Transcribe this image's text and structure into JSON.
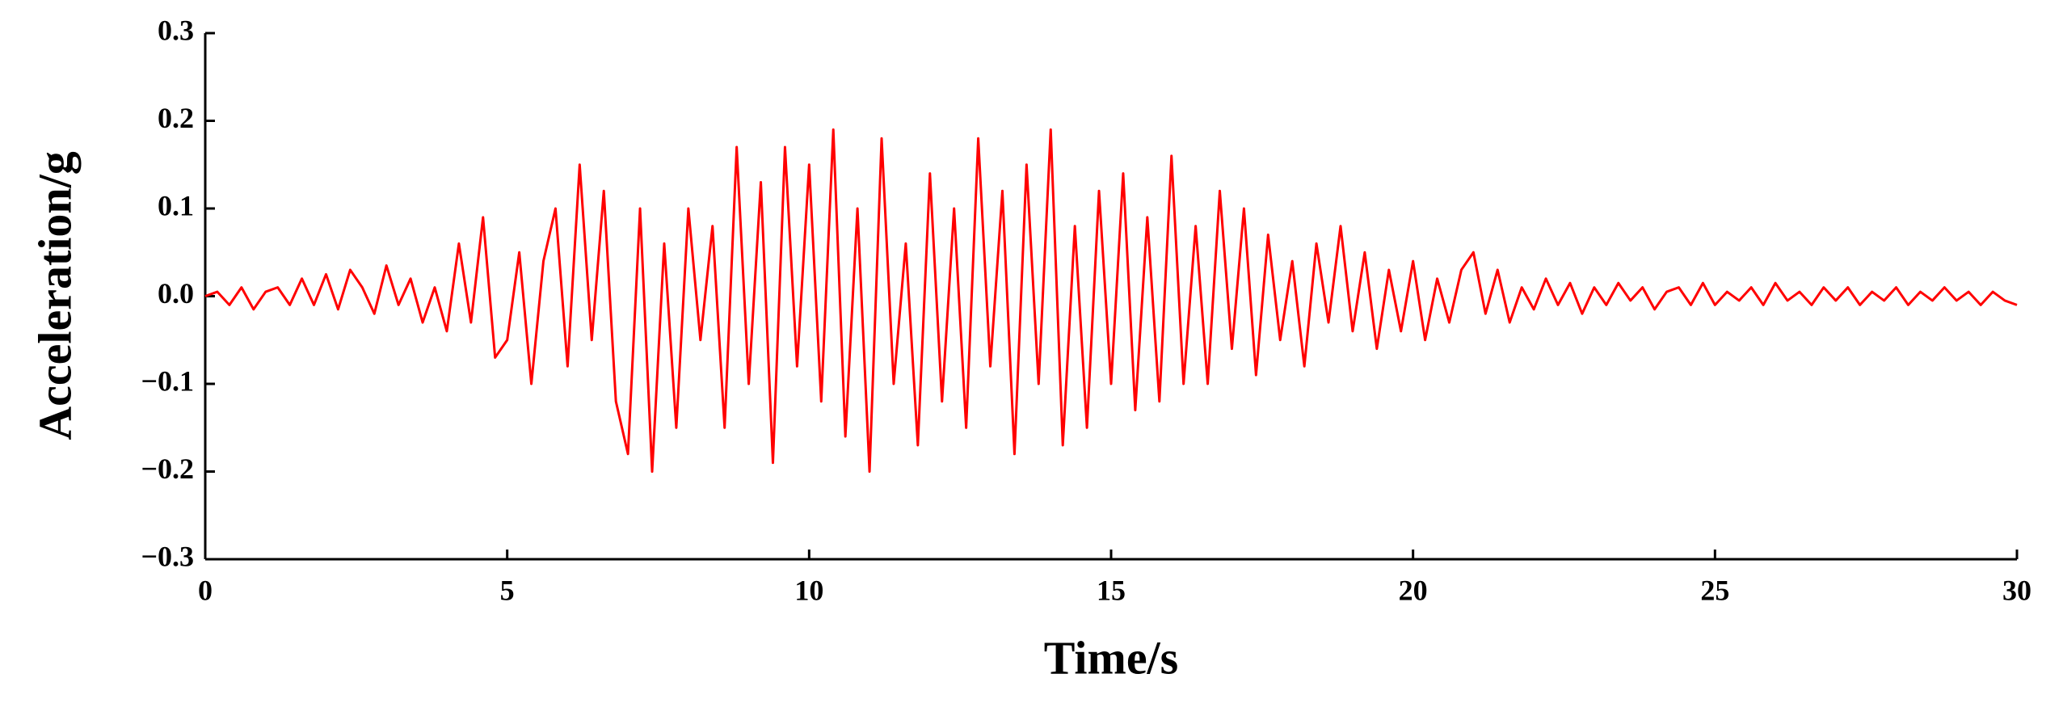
{
  "chart_data": {
    "type": "line",
    "x_label": "Time/s",
    "y_label": "Acceleration/g",
    "x": [
      0,
      0.2,
      0.4,
      0.6,
      0.8,
      1,
      1.2,
      1.4,
      1.6,
      1.8,
      2,
      2.2,
      2.4,
      2.6,
      2.8,
      3,
      3.2,
      3.4,
      3.6,
      3.8,
      4,
      4.2,
      4.4,
      4.6,
      4.8,
      5,
      5.2,
      5.4,
      5.6,
      5.8,
      6,
      6.2,
      6.4,
      6.6,
      6.8,
      7,
      7.2,
      7.4,
      7.6,
      7.8,
      8,
      8.2,
      8.4,
      8.6,
      8.8,
      9,
      9.2,
      9.4,
      9.6,
      9.8,
      10,
      10.2,
      10.4,
      10.6,
      10.8,
      11,
      11.2,
      11.4,
      11.6,
      11.8,
      12,
      12.2,
      12.4,
      12.6,
      12.8,
      13,
      13.2,
      13.4,
      13.6,
      13.8,
      14,
      14.2,
      14.4,
      14.6,
      14.8,
      15,
      15.2,
      15.4,
      15.6,
      15.8,
      16,
      16.2,
      16.4,
      16.6,
      16.8,
      17,
      17.2,
      17.4,
      17.6,
      17.8,
      18,
      18.2,
      18.4,
      18.6,
      18.8,
      19,
      19.2,
      19.4,
      19.6,
      19.8,
      20,
      20.2,
      20.4,
      20.6,
      20.8,
      21,
      21.2,
      21.4,
      21.6,
      21.8,
      22,
      22.2,
      22.4,
      22.6,
      22.8,
      23,
      23.2,
      23.4,
      23.6,
      23.8,
      24,
      24.2,
      24.4,
      24.6,
      24.8,
      25,
      25.2,
      25.4,
      25.6,
      25.8,
      26,
      26.2,
      26.4,
      26.6,
      26.8,
      27,
      27.2,
      27.4,
      27.6,
      27.8,
      28,
      28.2,
      28.4,
      28.6,
      28.8,
      29,
      29.2,
      29.4,
      29.6,
      29.8,
      30
    ],
    "series": [
      {
        "color": "#ff0000",
        "values": [
          0,
          0.005,
          -0.01,
          0.01,
          -0.015,
          0.005,
          0.01,
          -0.01,
          0.02,
          -0.01,
          0.025,
          -0.015,
          0.03,
          0.01,
          -0.02,
          0.035,
          -0.01,
          0.02,
          -0.03,
          0.01,
          -0.04,
          0.06,
          -0.03,
          0.09,
          -0.07,
          -0.05,
          0.05,
          -0.1,
          0.04,
          0.1,
          -0.08,
          0.15,
          -0.05,
          0.12,
          -0.12,
          -0.18,
          0.1,
          -0.2,
          0.06,
          -0.15,
          0.1,
          -0.05,
          0.08,
          -0.15,
          0.17,
          -0.1,
          0.13,
          -0.19,
          0.17,
          -0.08,
          0.15,
          -0.12,
          0.19,
          -0.16,
          0.1,
          -0.2,
          0.18,
          -0.1,
          0.06,
          -0.17,
          0.14,
          -0.12,
          0.1,
          -0.15,
          0.18,
          -0.08,
          0.12,
          -0.18,
          0.15,
          -0.1,
          0.19,
          -0.17,
          0.08,
          -0.15,
          0.12,
          -0.1,
          0.14,
          -0.13,
          0.09,
          -0.12,
          0.16,
          -0.1,
          0.08,
          -0.1,
          0.12,
          -0.06,
          0.1,
          -0.09,
          0.07,
          -0.05,
          0.04,
          -0.08,
          0.06,
          -0.03,
          0.08,
          -0.04,
          0.05,
          -0.06,
          0.03,
          -0.04,
          0.04,
          -0.05,
          0.02,
          -0.03,
          0.03,
          0.05,
          -0.02,
          0.03,
          -0.03,
          0.01,
          -0.015,
          0.02,
          -0.01,
          0.015,
          -0.02,
          0.01,
          -0.01,
          0.015,
          -0.005,
          0.01,
          -0.015,
          0.005,
          0.01,
          -0.01,
          0.015,
          -0.01,
          0.005,
          -0.005,
          0.01,
          -0.01,
          0.015,
          -0.005,
          0.005,
          -0.01,
          0.01,
          -0.005,
          0.01,
          -0.01,
          0.005,
          -0.005,
          0.01,
          -0.01,
          0.005,
          -0.005,
          0.01,
          -0.005,
          0.005,
          -0.01,
          0.005,
          -0.005,
          -0.01
        ]
      }
    ],
    "xlim": [
      0,
      30
    ],
    "xticks": [
      0,
      5,
      10,
      15,
      20,
      25,
      30
    ],
    "ylim": [
      -0.3,
      0.3
    ],
    "yticks": [
      {
        "value": -0.3,
        "label": "−0.3"
      },
      {
        "value": -0.2,
        "label": "−0.2"
      },
      {
        "value": -0.1,
        "label": "−0.1"
      },
      {
        "value": 0,
        "label": "0.0"
      },
      0.1,
      0.2,
      0.3
    ],
    "grid": false
  }
}
